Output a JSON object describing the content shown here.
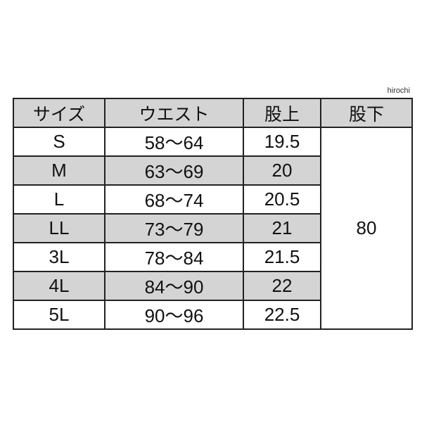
{
  "watermark": "hirochi",
  "table": {
    "headers": [
      "サイズ",
      "ウエスト",
      "股上",
      "股下"
    ],
    "rows": [
      {
        "size": "S",
        "waist": "58〜64",
        "rise": "19.5"
      },
      {
        "size": "M",
        "waist": "63〜69",
        "rise": "20"
      },
      {
        "size": "L",
        "waist": "68〜74",
        "rise": "20.5"
      },
      {
        "size": "LL",
        "waist": "73〜79",
        "rise": "21"
      },
      {
        "size": "3L",
        "waist": "78〜84",
        "rise": "21.5"
      },
      {
        "size": "4L",
        "waist": "84〜90",
        "rise": "22"
      },
      {
        "size": "5L",
        "waist": "90〜96",
        "rise": "22.5"
      }
    ],
    "inseam": "80",
    "shade_color": "#d4d4d4"
  }
}
